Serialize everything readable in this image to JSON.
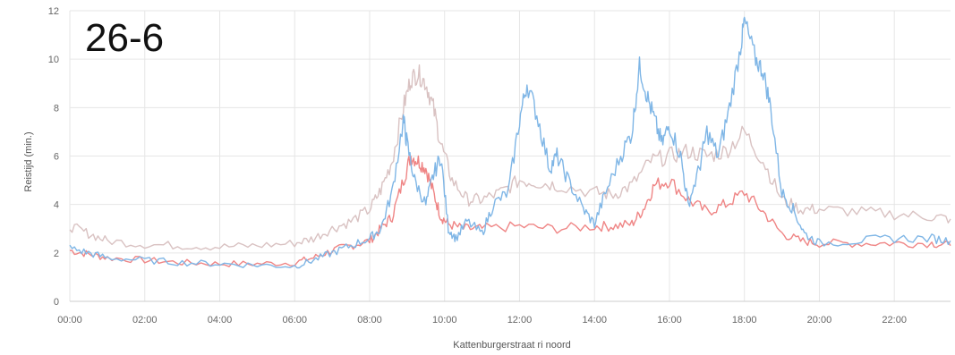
{
  "chart_data": {
    "type": "line",
    "title": "26-6",
    "xlabel": "Kattenburgerstraat ri noord",
    "ylabel": "Reistijd (min.)",
    "xlim": [
      0,
      23.5
    ],
    "ylim": [
      0,
      12
    ],
    "x_tick_values": [
      0,
      2,
      4,
      6,
      8,
      10,
      12,
      14,
      16,
      18,
      20,
      22
    ],
    "x_tick_labels": [
      "00:00",
      "02:00",
      "04:00",
      "06:00",
      "08:00",
      "10:00",
      "12:00",
      "14:00",
      "16:00",
      "18:00",
      "20:00",
      "22:00"
    ],
    "y_ticks": [
      0,
      2,
      4,
      6,
      8,
      10,
      12
    ],
    "grid": true,
    "legend": "none",
    "series": [
      {
        "color": "#ef8585",
        "points": [
          [
            0,
            2.1
          ],
          [
            0.5,
            1.95
          ],
          [
            1,
            1.8
          ],
          [
            2,
            1.7
          ],
          [
            3,
            1.6
          ],
          [
            4,
            1.55
          ],
          [
            5,
            1.55
          ],
          [
            6,
            1.6
          ],
          [
            6.5,
            1.8
          ],
          [
            7,
            2.1
          ],
          [
            7.5,
            2.3
          ],
          [
            8,
            2.5
          ],
          [
            8.3,
            3.0
          ],
          [
            8.6,
            3.5
          ],
          [
            8.9,
            5.0
          ],
          [
            9.1,
            6.0
          ],
          [
            9.3,
            5.8
          ],
          [
            9.5,
            5.5
          ],
          [
            9.7,
            4.5
          ],
          [
            9.9,
            3.5
          ],
          [
            10.1,
            3.2
          ],
          [
            10.5,
            3.0
          ],
          [
            11,
            3.0
          ],
          [
            12,
            3.1
          ],
          [
            13,
            3.0
          ],
          [
            14,
            3.1
          ],
          [
            14.5,
            3.1
          ],
          [
            15,
            3.2
          ],
          [
            15.3,
            3.8
          ],
          [
            15.6,
            4.8
          ],
          [
            16,
            5.0
          ],
          [
            16.5,
            4.2
          ],
          [
            17,
            3.7
          ],
          [
            17.5,
            4.0
          ],
          [
            18,
            4.5
          ],
          [
            18.5,
            3.7
          ],
          [
            19,
            2.8
          ],
          [
            19.5,
            2.5
          ],
          [
            20,
            2.4
          ],
          [
            21,
            2.4
          ],
          [
            22,
            2.4
          ],
          [
            23,
            2.4
          ],
          [
            23.5,
            2.3
          ]
        ]
      },
      {
        "color": "#d9c2c2",
        "points": [
          [
            0,
            3.1
          ],
          [
            0.5,
            2.8
          ],
          [
            1,
            2.5
          ],
          [
            2,
            2.35
          ],
          [
            3,
            2.3
          ],
          [
            4,
            2.25
          ],
          [
            5,
            2.3
          ],
          [
            6,
            2.4
          ],
          [
            6.5,
            2.6
          ],
          [
            7,
            3.0
          ],
          [
            7.5,
            3.3
          ],
          [
            8,
            3.8
          ],
          [
            8.3,
            4.6
          ],
          [
            8.6,
            5.8
          ],
          [
            8.9,
            8.0
          ],
          [
            9.1,
            9.2
          ],
          [
            9.3,
            9.4
          ],
          [
            9.5,
            9.0
          ],
          [
            9.7,
            8.0
          ],
          [
            9.9,
            6.5
          ],
          [
            10.2,
            5.0
          ],
          [
            10.6,
            4.2
          ],
          [
            11,
            4.2
          ],
          [
            11.5,
            4.5
          ],
          [
            12,
            5.0
          ],
          [
            12.5,
            4.9
          ],
          [
            13,
            4.8
          ],
          [
            14,
            4.5
          ],
          [
            14.5,
            4.4
          ],
          [
            15,
            4.8
          ],
          [
            15.5,
            5.8
          ],
          [
            16,
            6.0
          ],
          [
            16.5,
            6.2
          ],
          [
            17,
            6.0
          ],
          [
            17.5,
            6.2
          ],
          [
            18,
            7.0
          ],
          [
            18.5,
            5.8
          ],
          [
            19,
            4.2
          ],
          [
            19.5,
            3.8
          ],
          [
            20,
            3.8
          ],
          [
            21,
            3.7
          ],
          [
            22,
            3.6
          ],
          [
            23,
            3.5
          ],
          [
            23.5,
            3.4
          ]
        ]
      },
      {
        "color": "#7fb6e6",
        "points": [
          [
            0,
            2.2
          ],
          [
            0.5,
            2.0
          ],
          [
            1,
            1.8
          ],
          [
            2,
            1.7
          ],
          [
            3,
            1.6
          ],
          [
            4,
            1.55
          ],
          [
            5,
            1.5
          ],
          [
            6,
            1.45
          ],
          [
            6.5,
            1.7
          ],
          [
            7,
            2.0
          ],
          [
            7.5,
            2.3
          ],
          [
            8,
            2.6
          ],
          [
            8.3,
            3.0
          ],
          [
            8.6,
            4.5
          ],
          [
            8.9,
            7.5
          ],
          [
            9.0,
            6.5
          ],
          [
            9.2,
            5.0
          ],
          [
            9.5,
            4.0
          ],
          [
            9.7,
            5.2
          ],
          [
            9.9,
            6.0
          ],
          [
            10.1,
            3.0
          ],
          [
            10.3,
            2.6
          ],
          [
            10.6,
            3.3
          ],
          [
            11,
            2.8
          ],
          [
            11.3,
            4.0
          ],
          [
            11.7,
            4.5
          ],
          [
            12,
            7.5
          ],
          [
            12.2,
            9.0
          ],
          [
            12.5,
            7.5
          ],
          [
            12.8,
            5.5
          ],
          [
            13,
            6.0
          ],
          [
            13.3,
            5.0
          ],
          [
            13.7,
            3.8
          ],
          [
            14,
            3.2
          ],
          [
            14.3,
            4.5
          ],
          [
            14.7,
            6.0
          ],
          [
            15,
            7.0
          ],
          [
            15.2,
            9.7
          ],
          [
            15.4,
            8.5
          ],
          [
            15.6,
            7.5
          ],
          [
            15.8,
            6.5
          ],
          [
            16,
            7.3
          ],
          [
            16.3,
            6.0
          ],
          [
            16.5,
            4.0
          ],
          [
            16.8,
            5.5
          ],
          [
            17,
            7.0
          ],
          [
            17.3,
            6.0
          ],
          [
            17.6,
            8.0
          ],
          [
            17.9,
            10.5
          ],
          [
            18.0,
            11.6
          ],
          [
            18.3,
            10.0
          ],
          [
            18.5,
            9.5
          ],
          [
            18.7,
            8.0
          ],
          [
            19,
            4.5
          ],
          [
            19.3,
            3.8
          ],
          [
            19.6,
            2.8
          ],
          [
            20,
            2.4
          ],
          [
            21,
            2.5
          ],
          [
            22,
            2.6
          ],
          [
            23,
            2.6
          ],
          [
            23.5,
            2.5
          ]
        ]
      }
    ]
  }
}
